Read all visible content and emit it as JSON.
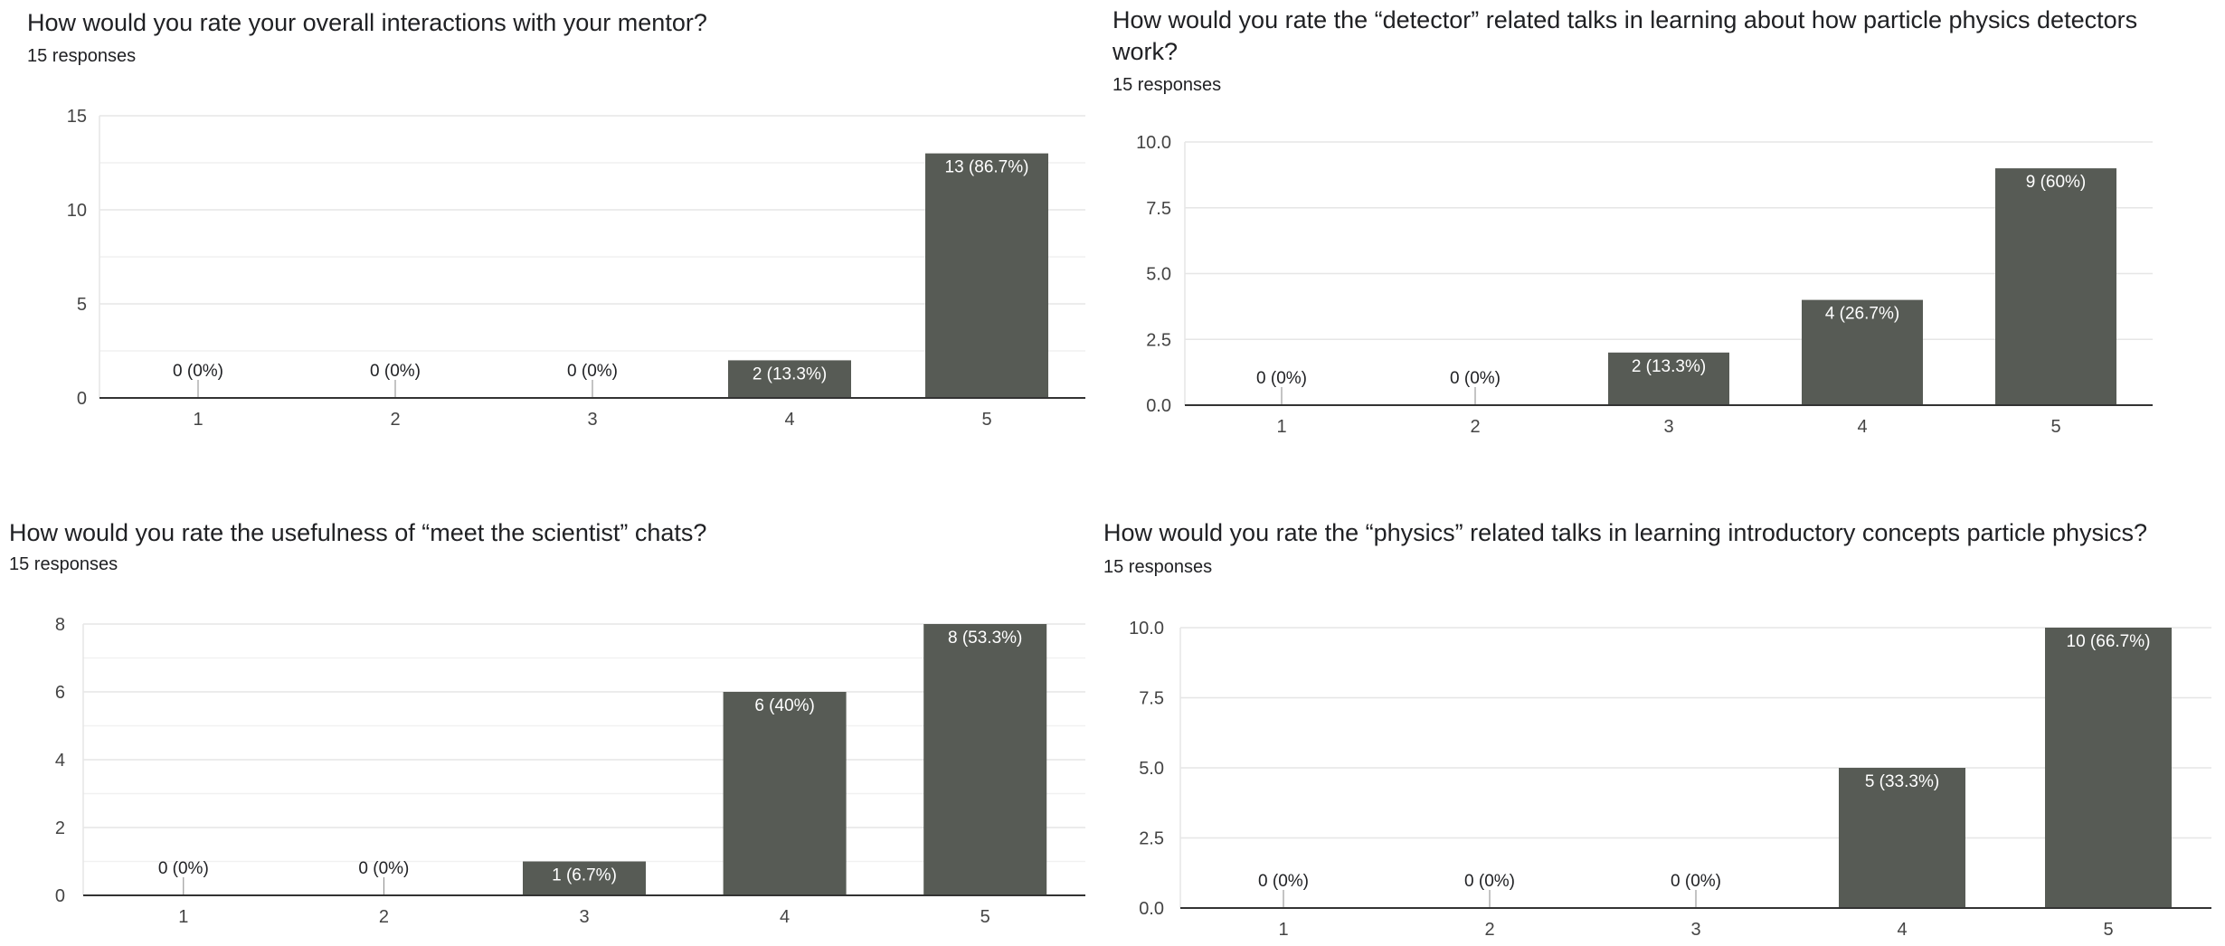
{
  "colors": {
    "bar": "#575b55",
    "grid": "#e6e6e6",
    "axis": "#333333",
    "text": "#202124"
  },
  "panels": [
    {
      "title": "How would you rate your overall interactions with your mentor?",
      "responses": "15 responses"
    },
    {
      "title": "How would you rate the “detector” related talks in learning about how particle physics detectors work?",
      "responses": "15 responses"
    },
    {
      "title": "How would you rate the usefulness of “meet the scientist” chats?",
      "responses": "15 responses"
    },
    {
      "title": "How would you rate the “physics” related talks in learning introductory concepts particle physics?",
      "responses": "15 responses"
    }
  ],
  "chart_data": [
    {
      "type": "bar",
      "categories": [
        "1",
        "2",
        "3",
        "4",
        "5"
      ],
      "values": [
        0,
        0,
        0,
        2,
        13
      ],
      "labels": [
        "0 (0%)",
        "0 (0%)",
        "0 (0%)",
        "2 (13.3%)",
        "13 (86.7%)"
      ],
      "ylim": [
        0,
        15
      ],
      "yticks": [
        "0",
        "5",
        "10",
        "15"
      ],
      "yticks_values": [
        0,
        5,
        10,
        15
      ],
      "minor_gridlines": true,
      "grid": true
    },
    {
      "type": "bar",
      "categories": [
        "1",
        "2",
        "3",
        "4",
        "5"
      ],
      "values": [
        0,
        0,
        2,
        4,
        9
      ],
      "labels": [
        "0 (0%)",
        "0 (0%)",
        "2 (13.3%)",
        "4 (26.7%)",
        "9 (60%)"
      ],
      "ylim": [
        0,
        10
      ],
      "yticks": [
        "0.0",
        "2.5",
        "5.0",
        "7.5",
        "10.0"
      ],
      "yticks_values": [
        0,
        2.5,
        5,
        7.5,
        10
      ],
      "minor_gridlines": false,
      "grid": true
    },
    {
      "type": "bar",
      "categories": [
        "1",
        "2",
        "3",
        "4",
        "5"
      ],
      "values": [
        0,
        0,
        1,
        6,
        8
      ],
      "labels": [
        "0 (0%)",
        "0 (0%)",
        "1 (6.7%)",
        "6 (40%)",
        "8 (53.3%)"
      ],
      "ylim": [
        0,
        8
      ],
      "yticks": [
        "0",
        "2",
        "4",
        "6",
        "8"
      ],
      "yticks_values": [
        0,
        2,
        4,
        6,
        8
      ],
      "minor_gridlines": true,
      "grid": true
    },
    {
      "type": "bar",
      "categories": [
        "1",
        "2",
        "3",
        "4",
        "5"
      ],
      "values": [
        0,
        0,
        0,
        5,
        10
      ],
      "labels": [
        "0 (0%)",
        "0 (0%)",
        "0 (0%)",
        "5 (33.3%)",
        "10 (66.7%)"
      ],
      "ylim": [
        0,
        10
      ],
      "yticks": [
        "0.0",
        "2.5",
        "5.0",
        "7.5",
        "10.0"
      ],
      "yticks_values": [
        0,
        2.5,
        5,
        7.5,
        10
      ],
      "minor_gridlines": false,
      "grid": true
    }
  ]
}
